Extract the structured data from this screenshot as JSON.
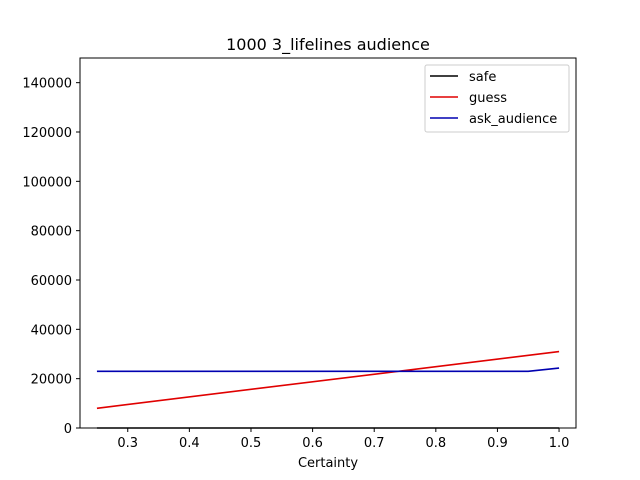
{
  "chart_data": {
    "type": "line",
    "title": "1000 3_lifelines audience",
    "xlabel": "Certainty",
    "ylabel": "",
    "xlim": [
      0.2225,
      1.0275
    ],
    "ylim": [
      0,
      150000
    ],
    "xticks": [
      0.3,
      0.4,
      0.5,
      0.6,
      0.7,
      0.8,
      0.9,
      1.0
    ],
    "xtick_labels": [
      "0.3",
      "0.4",
      "0.5",
      "0.6",
      "0.7",
      "0.8",
      "0.9",
      "1.0"
    ],
    "yticks": [
      0,
      20000,
      40000,
      60000,
      80000,
      100000,
      120000,
      140000
    ],
    "ytick_labels": [
      "0",
      "20000",
      "40000",
      "60000",
      "80000",
      "100000",
      "120000",
      "140000"
    ],
    "grid": false,
    "legend_position": "top-right",
    "series": [
      {
        "name": "safe",
        "color": "#000000",
        "x": [
          0.25,
          1.0
        ],
        "y": [
          0,
          0
        ]
      },
      {
        "name": "guess",
        "color": "#e00000",
        "x": [
          0.25,
          1.0
        ],
        "y": [
          8000,
          31000
        ]
      },
      {
        "name": "ask_audience",
        "color": "#0000b0",
        "x": [
          0.25,
          0.95,
          1.0
        ],
        "y": [
          23000,
          23000,
          24300
        ]
      }
    ]
  }
}
